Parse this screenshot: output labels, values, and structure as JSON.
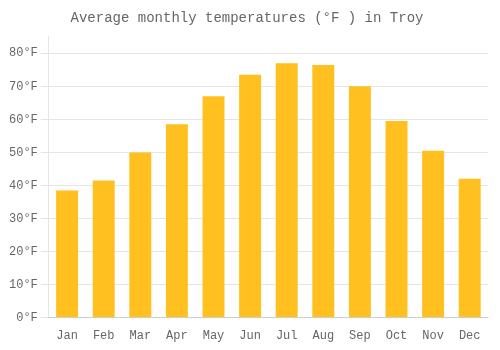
{
  "chart_data": {
    "type": "bar",
    "title": "Average monthly temperatures (°F ) in Troy",
    "categories": [
      "Jan",
      "Feb",
      "Mar",
      "Apr",
      "May",
      "Jun",
      "Jul",
      "Aug",
      "Sep",
      "Oct",
      "Nov",
      "Dec"
    ],
    "values": [
      38.5,
      41.5,
      50.0,
      58.5,
      67.0,
      73.5,
      77.0,
      76.5,
      70.0,
      59.5,
      50.5,
      42.0
    ],
    "color": "#FFC020",
    "ylim": [
      0,
      85
    ],
    "yticks": [
      {
        "value": 0,
        "label": "0°F"
      },
      {
        "value": 10,
        "label": "10°F"
      },
      {
        "value": 20,
        "label": "20°F"
      },
      {
        "value": 30,
        "label": "30°F"
      },
      {
        "value": 40,
        "label": "40°F"
      },
      {
        "value": 50,
        "label": "50°F"
      },
      {
        "value": 60,
        "label": "60°F"
      },
      {
        "value": 70,
        "label": "70°F"
      },
      {
        "value": 80,
        "label": "80°F"
      }
    ],
    "grid": true
  }
}
